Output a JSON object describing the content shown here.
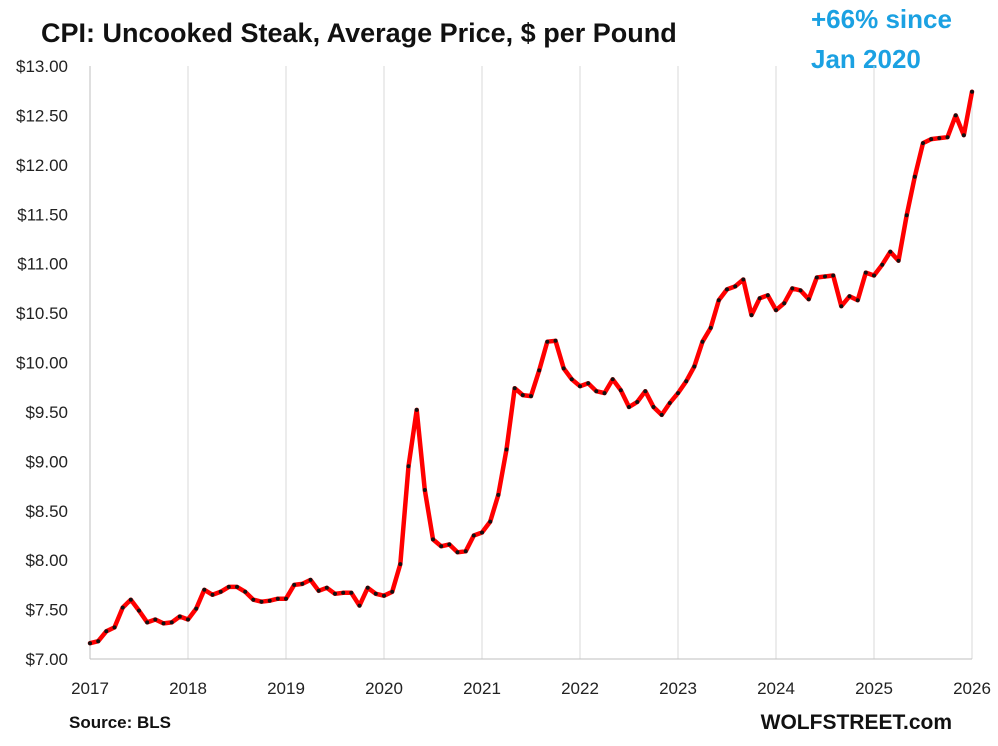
{
  "chart_data": {
    "type": "line",
    "title": "CPI: Uncooked Steak, Average Price, $ per Pound",
    "annotation": {
      "lines": [
        "+66% since",
        "Jan 2020"
      ],
      "color": "#1ba1e2"
    },
    "source": "Source: BLS",
    "brand": "WOLFSTREET.com",
    "xlabel": "",
    "ylabel": "",
    "x_tick_labels": [
      "2017",
      "2018",
      "2019",
      "2020",
      "2021",
      "2022",
      "2023",
      "2024",
      "2025",
      "2026"
    ],
    "y_tick_labels": [
      "$7.00",
      "$7.50",
      "$8.00",
      "$8.50",
      "$9.00",
      "$9.50",
      "$10.00",
      "$10.50",
      "$11.00",
      "$11.50",
      "$12.00",
      "$12.50",
      "$13.00"
    ],
    "ylim": [
      7.0,
      13.0
    ],
    "xlim": [
      "2017-01",
      "2026-01"
    ],
    "grid": "vertical",
    "legend": "none",
    "series": [
      {
        "line_color": "#ff0000",
        "marker_color": "#111111",
        "x": [
          "2017-01",
          "2017-02",
          "2017-03",
          "2017-04",
          "2017-05",
          "2017-06",
          "2017-07",
          "2017-08",
          "2017-09",
          "2017-10",
          "2017-11",
          "2017-12",
          "2018-01",
          "2018-02",
          "2018-03",
          "2018-04",
          "2018-05",
          "2018-06",
          "2018-07",
          "2018-08",
          "2018-09",
          "2018-10",
          "2018-11",
          "2018-12",
          "2019-01",
          "2019-02",
          "2019-03",
          "2019-04",
          "2019-05",
          "2019-06",
          "2019-07",
          "2019-08",
          "2019-09",
          "2019-10",
          "2019-11",
          "2019-12",
          "2020-01",
          "2020-02",
          "2020-03",
          "2020-04",
          "2020-05",
          "2020-06",
          "2020-07",
          "2020-08",
          "2020-09",
          "2020-10",
          "2020-11",
          "2020-12",
          "2021-01",
          "2021-02",
          "2021-03",
          "2021-04",
          "2021-05",
          "2021-06",
          "2021-07",
          "2021-08",
          "2021-09",
          "2021-10",
          "2021-11",
          "2021-12",
          "2022-01",
          "2022-02",
          "2022-03",
          "2022-04",
          "2022-05",
          "2022-06",
          "2022-07",
          "2022-08",
          "2022-09",
          "2022-10",
          "2022-11",
          "2022-12",
          "2023-01",
          "2023-02",
          "2023-03",
          "2023-04",
          "2023-05",
          "2023-06",
          "2023-07",
          "2023-08",
          "2023-09",
          "2023-10",
          "2023-11",
          "2023-12",
          "2024-01",
          "2024-02",
          "2024-03",
          "2024-04",
          "2024-05",
          "2024-06",
          "2024-07",
          "2024-08",
          "2024-09",
          "2024-10",
          "2024-11",
          "2024-12",
          "2025-01",
          "2025-02",
          "2025-03",
          "2025-04",
          "2025-05",
          "2025-06",
          "2025-07",
          "2025-08",
          "2025-09",
          "2025-10",
          "2025-11",
          "2025-12",
          "2026-01"
        ],
        "values": [
          7.16,
          7.18,
          7.28,
          7.32,
          7.52,
          7.6,
          7.49,
          7.37,
          7.4,
          7.36,
          7.37,
          7.43,
          7.4,
          7.51,
          7.7,
          7.65,
          7.68,
          7.73,
          7.73,
          7.68,
          7.6,
          7.58,
          7.59,
          7.61,
          7.61,
          7.75,
          7.76,
          7.8,
          7.69,
          7.72,
          7.66,
          7.67,
          7.67,
          7.54,
          7.72,
          7.66,
          7.64,
          7.68,
          7.96,
          8.95,
          9.52,
          8.71,
          8.21,
          8.14,
          8.16,
          8.08,
          8.09,
          8.25,
          8.28,
          8.39,
          8.66,
          9.12,
          9.74,
          9.67,
          9.66,
          9.92,
          10.21,
          10.22,
          9.94,
          9.83,
          9.76,
          9.79,
          9.71,
          9.69,
          9.83,
          9.72,
          9.55,
          9.6,
          9.71,
          9.55,
          9.47,
          9.59,
          9.69,
          9.81,
          9.96,
          10.21,
          10.35,
          10.63,
          10.74,
          10.77,
          10.84,
          10.48,
          10.65,
          10.68,
          10.53,
          10.6,
          10.75,
          10.73,
          10.64,
          10.86,
          10.87,
          10.88,
          10.57,
          10.67,
          10.63,
          10.91,
          10.88,
          10.99,
          11.12,
          11.03,
          11.49,
          11.88,
          12.22,
          12.26,
          12.27,
          12.28,
          12.5,
          12.3,
          12.74
        ]
      }
    ]
  }
}
